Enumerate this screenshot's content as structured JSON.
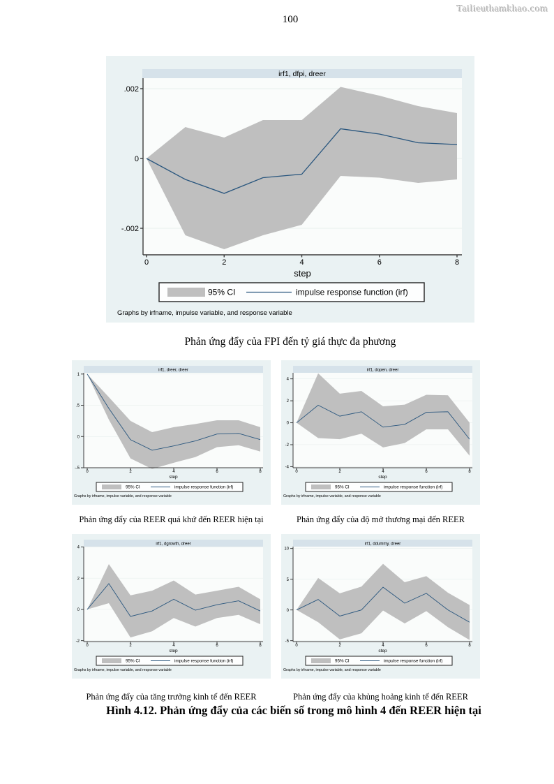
{
  "page": {
    "number": "100",
    "watermark": "Tailieuthamkhao.com"
  },
  "captions": {
    "top_chart": "Phản ứng đẩy của FPI đến tỷ giá thực đa phương",
    "grid": [
      "Phản ứng đẩy của REER quá khứ đến REER hiện tại",
      "Phản ứng đẩy của độ mở thương mại đến REER",
      "Phản ứng đẩy của tăng trưởng kinh tế đến REER",
      "Phản ứng đẩy của khủng hoảng kinh tế đến REER"
    ],
    "figure": "Hình 4.12.  Phản ứng đẩy của các biến số trong mô hình 4 đến REER hiện tại"
  },
  "chart_common": {
    "xlabel": "step",
    "x_ticks": [
      0,
      2,
      4,
      6,
      8
    ],
    "legend": {
      "ci_label": "95% CI",
      "irf_label": "impulse response function (irf)"
    },
    "footnote": "Graphs by irfname, impulse variable, and response variable",
    "colors": {
      "outer_bg": "#eaf2f3",
      "title_band": "#d6e2ea",
      "plot_bg": "#fafcfb",
      "grid": "#e8efee",
      "band": "#bfbfbf",
      "line": "#29567e",
      "axis": "#3c3c3c"
    }
  },
  "chart_data": [
    {
      "type": "area",
      "title": "irf1, dfpi, dreer",
      "xlabel": "step",
      "x": [
        0,
        1,
        2,
        3,
        4,
        5,
        6,
        7,
        8
      ],
      "ylim": [
        -0.00276,
        0.0023
      ],
      "yticks": [
        {
          "v": 0.002,
          "label": ".002"
        },
        {
          "v": 0,
          "label": "0"
        },
        {
          "v": -0.002,
          "label": "-.002"
        }
      ],
      "series": [
        {
          "name": "95% CI upper",
          "values": [
            0,
            0.0009,
            0.0006,
            0.0011,
            0.0011,
            0.00205,
            0.0018,
            0.0015,
            0.0013
          ]
        },
        {
          "name": "95% CI lower",
          "values": [
            0,
            -0.0022,
            -0.0026,
            -0.0022,
            -0.0019,
            -0.0005,
            -0.00055,
            -0.0007,
            -0.0006
          ]
        },
        {
          "name": "impulse response function (irf)",
          "values": [
            0,
            -0.0006,
            -0.001,
            -0.00055,
            -0.00045,
            0.00085,
            0.0007,
            0.00045,
            0.0004
          ]
        }
      ]
    },
    {
      "type": "area",
      "title": "irf1, dreer, dreer",
      "xlabel": "step",
      "x": [
        0,
        1,
        2,
        3,
        4,
        5,
        6,
        7,
        8
      ],
      "ylim": [
        -0.5,
        1.02
      ],
      "yticks": [
        {
          "v": 1,
          "label": "1"
        },
        {
          "v": 0.5,
          "label": ".5"
        },
        {
          "v": 0,
          "label": "0"
        },
        {
          "v": -0.5,
          "label": "-.5"
        }
      ],
      "series": [
        {
          "name": "95% CI upper",
          "values": [
            1,
            0.63,
            0.25,
            0.07,
            0.15,
            0.2,
            0.26,
            0.26,
            0.15
          ]
        },
        {
          "name": "95% CI lower",
          "values": [
            1,
            0.27,
            -0.35,
            -0.52,
            -0.42,
            -0.33,
            -0.17,
            -0.14,
            -0.24
          ]
        },
        {
          "name": "impulse response function (irf)",
          "values": [
            1,
            0.45,
            -0.05,
            -0.22,
            -0.15,
            -0.07,
            0.04,
            0.05,
            -0.05
          ]
        }
      ]
    },
    {
      "type": "area",
      "title": "irf1, dopen, dreer",
      "xlabel": "step",
      "x": [
        0,
        1,
        2,
        3,
        4,
        5,
        6,
        7,
        8
      ],
      "ylim": [
        -4.1,
        4.55
      ],
      "yticks": [
        {
          "v": 4,
          "label": "4"
        },
        {
          "v": 2,
          "label": "2"
        },
        {
          "v": 0,
          "label": "0"
        },
        {
          "v": -2,
          "label": "-2"
        },
        {
          "v": -4,
          "label": "-4"
        }
      ],
      "series": [
        {
          "name": "95% CI upper",
          "values": [
            0,
            4.5,
            2.65,
            2.9,
            1.5,
            1.65,
            2.55,
            2.5,
            0.0
          ]
        },
        {
          "name": "95% CI lower",
          "values": [
            0,
            -1.4,
            -1.5,
            -1.0,
            -2.25,
            -1.85,
            -0.6,
            -0.6,
            -3.0
          ]
        },
        {
          "name": "impulse response function (irf)",
          "values": [
            0,
            1.6,
            0.6,
            1.0,
            -0.4,
            -0.15,
            0.95,
            1.0,
            -1.5
          ]
        }
      ]
    },
    {
      "type": "area",
      "title": "irf1, dgrowth, dreer",
      "xlabel": "step",
      "x": [
        0,
        1,
        2,
        3,
        4,
        5,
        6,
        7,
        8
      ],
      "ylim": [
        -2.06,
        4.02
      ],
      "yticks": [
        {
          "v": 4,
          "label": "4"
        },
        {
          "v": 2,
          "label": "2"
        },
        {
          "v": 0,
          "label": "0"
        },
        {
          "v": -2,
          "label": "-2"
        }
      ],
      "series": [
        {
          "name": "95% CI upper",
          "values": [
            0,
            2.9,
            0.9,
            1.2,
            1.85,
            0.95,
            1.2,
            1.45,
            0.65
          ]
        },
        {
          "name": "95% CI lower",
          "values": [
            0,
            0.4,
            -1.8,
            -1.4,
            -0.55,
            -1.1,
            -0.55,
            -0.35,
            -0.95
          ]
        },
        {
          "name": "impulse response function (irf)",
          "values": [
            0,
            1.65,
            -0.45,
            -0.1,
            0.65,
            -0.05,
            0.3,
            0.55,
            -0.1
          ]
        }
      ]
    },
    {
      "type": "area",
      "title": "irf1, ddummy, dreer",
      "xlabel": "step",
      "x": [
        0,
        1,
        2,
        3,
        4,
        5,
        6,
        7,
        8
      ],
      "ylim": [
        -5.15,
        10.3
      ],
      "yticks": [
        {
          "v": 10,
          "label": "10"
        },
        {
          "v": 5,
          "label": "5"
        },
        {
          "v": 0,
          "label": "0"
        },
        {
          "v": -5,
          "label": "-5"
        }
      ],
      "series": [
        {
          "name": "95% CI upper",
          "values": [
            0,
            5.2,
            2.7,
            3.8,
            7.5,
            4.5,
            5.5,
            2.8,
            0.8
          ]
        },
        {
          "name": "95% CI lower",
          "values": [
            0,
            -2.0,
            -4.8,
            -3.8,
            -0.1,
            -2.2,
            -0.2,
            -2.8,
            -4.9
          ]
        },
        {
          "name": "impulse response function (irf)",
          "values": [
            0,
            1.7,
            -1.0,
            0.0,
            3.7,
            1.1,
            2.7,
            0.0,
            -2.0
          ]
        }
      ]
    }
  ]
}
